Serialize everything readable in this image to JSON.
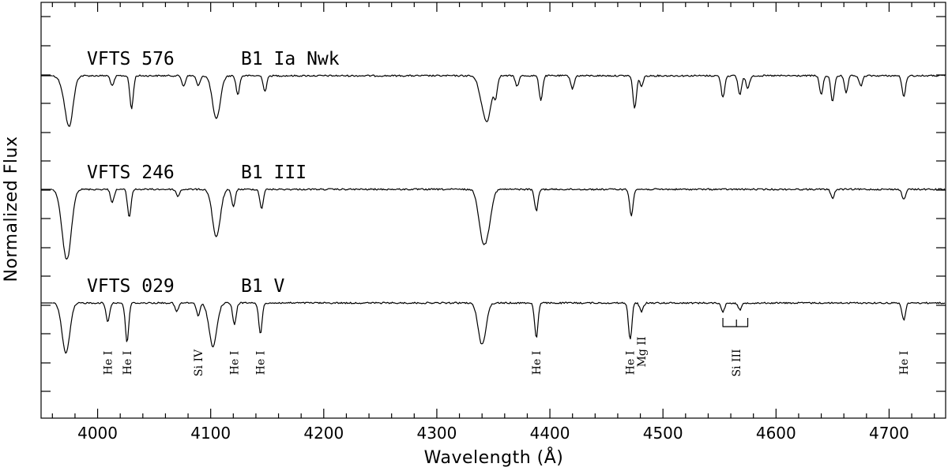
{
  "chart_data": {
    "type": "line",
    "title": "",
    "xlabel": "Wavelength (Å)",
    "ylabel": "Normalized Flux",
    "xlim": [
      3950,
      4750
    ],
    "x_ticks": [
      4000,
      4100,
      4200,
      4300,
      4400,
      4500,
      4600,
      4700
    ],
    "grid": false,
    "series": [
      {
        "name": "VFTS 576",
        "spectral_type": "B1 Ia Nwk",
        "continuum_offset": 2,
        "absorption_lines": [
          {
            "wavelength": 3970,
            "depth": 0.1
          },
          {
            "wavelength": 3975,
            "depth": 0.55
          },
          {
            "wavelength": 4013,
            "depth": 0.12
          },
          {
            "wavelength": 4030,
            "depth": 0.38
          },
          {
            "wavelength": 4076,
            "depth": 0.12
          },
          {
            "wavelength": 4089,
            "depth": 0.12
          },
          {
            "wavelength": 4105,
            "depth": 0.5
          },
          {
            "wavelength": 4124,
            "depth": 0.22
          },
          {
            "wavelength": 4148,
            "depth": 0.18
          },
          {
            "wavelength": 4340,
            "depth": 0.2
          },
          {
            "wavelength": 4345,
            "depth": 0.45
          },
          {
            "wavelength": 4352,
            "depth": 0.22
          },
          {
            "wavelength": 4371,
            "depth": 0.12
          },
          {
            "wavelength": 4392,
            "depth": 0.28
          },
          {
            "wavelength": 4420,
            "depth": 0.15
          },
          {
            "wavelength": 4475,
            "depth": 0.38
          },
          {
            "wavelength": 4481,
            "depth": 0.12
          },
          {
            "wavelength": 4553,
            "depth": 0.25
          },
          {
            "wavelength": 4568,
            "depth": 0.22
          },
          {
            "wavelength": 4575,
            "depth": 0.15
          },
          {
            "wavelength": 4640,
            "depth": 0.22
          },
          {
            "wavelength": 4650,
            "depth": 0.3
          },
          {
            "wavelength": 4662,
            "depth": 0.2
          },
          {
            "wavelength": 4675,
            "depth": 0.12
          },
          {
            "wavelength": 4713,
            "depth": 0.25
          }
        ]
      },
      {
        "name": "VFTS 246",
        "spectral_type": "B1 III",
        "continuum_offset": 1,
        "absorption_lines": [
          {
            "wavelength": 3970,
            "depth": 0.35
          },
          {
            "wavelength": 3974,
            "depth": 0.6
          },
          {
            "wavelength": 4013,
            "depth": 0.15
          },
          {
            "wavelength": 4028,
            "depth": 0.32
          },
          {
            "wavelength": 4071,
            "depth": 0.08
          },
          {
            "wavelength": 4105,
            "depth": 0.55
          },
          {
            "wavelength": 4120,
            "depth": 0.2
          },
          {
            "wavelength": 4145,
            "depth": 0.22
          },
          {
            "wavelength": 4340,
            "depth": 0.45
          },
          {
            "wavelength": 4345,
            "depth": 0.38
          },
          {
            "wavelength": 4388,
            "depth": 0.25
          },
          {
            "wavelength": 4472,
            "depth": 0.3
          },
          {
            "wavelength": 4650,
            "depth": 0.1
          },
          {
            "wavelength": 4713,
            "depth": 0.12
          }
        ]
      },
      {
        "name": "VFTS 029",
        "spectral_type": "B1 V",
        "continuum_offset": 0,
        "absorption_lines": [
          {
            "wavelength": 3972,
            "depth": 0.58
          },
          {
            "wavelength": 4009,
            "depth": 0.22
          },
          {
            "wavelength": 4026,
            "depth": 0.45
          },
          {
            "wavelength": 4070,
            "depth": 0.1
          },
          {
            "wavelength": 4089,
            "depth": 0.15
          },
          {
            "wavelength": 4102,
            "depth": 0.5
          },
          {
            "wavelength": 4121,
            "depth": 0.25
          },
          {
            "wavelength": 4144,
            "depth": 0.35
          },
          {
            "wavelength": 4340,
            "depth": 0.48
          },
          {
            "wavelength": 4388,
            "depth": 0.4
          },
          {
            "wavelength": 4471,
            "depth": 0.42
          },
          {
            "wavelength": 4481,
            "depth": 0.1
          },
          {
            "wavelength": 4553,
            "depth": 0.1
          },
          {
            "wavelength": 4568,
            "depth": 0.08
          },
          {
            "wavelength": 4713,
            "depth": 0.2
          }
        ]
      }
    ],
    "line_identifications": [
      {
        "label": "He I",
        "wavelength": 4009
      },
      {
        "label": "He I",
        "wavelength": 4026
      },
      {
        "label": "Si IV",
        "wavelength": 4089
      },
      {
        "label": "He I",
        "wavelength": 4121
      },
      {
        "label": "He I",
        "wavelength": 4144
      },
      {
        "label": "He I",
        "wavelength": 4388
      },
      {
        "label": "He I",
        "wavelength": 4471
      },
      {
        "label": "Mg II",
        "wavelength": 4481
      },
      {
        "label": "Si III",
        "wavelength": 4565,
        "bracket": [
          4553,
          4575
        ]
      },
      {
        "label": "He I",
        "wavelength": 4713
      }
    ]
  }
}
